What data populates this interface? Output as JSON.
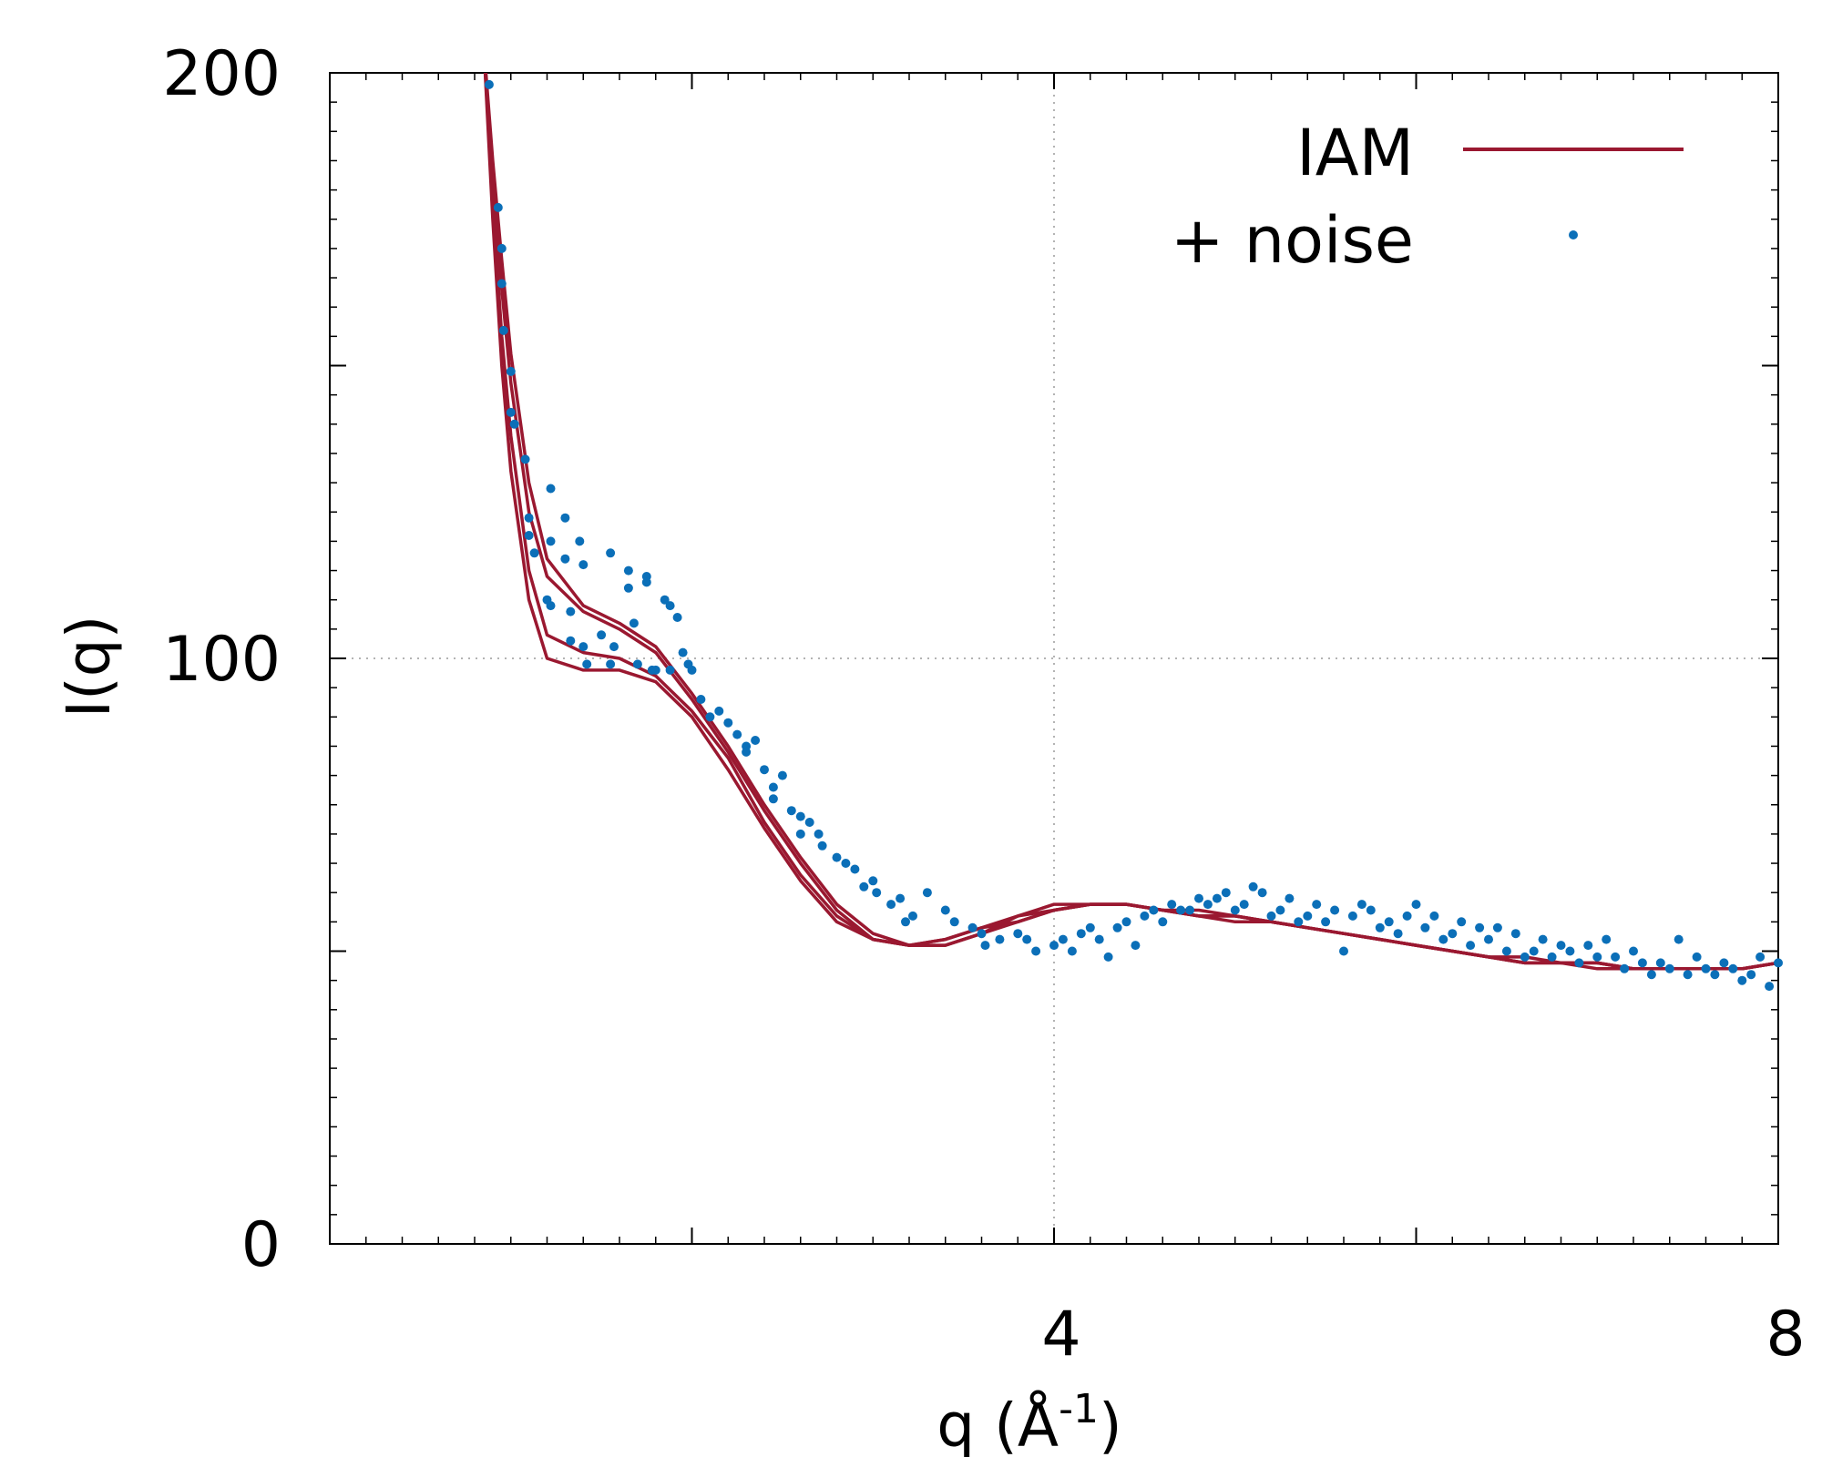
{
  "chart_data": {
    "type": "line",
    "title": "",
    "xlabel": "q (Å",
    "xlabel_sup": "-1",
    "xlabel_end": ")",
    "ylabel": "I(q)",
    "xlim": [
      0,
      8
    ],
    "ylim": [
      0,
      200
    ],
    "x_ticks": [
      4,
      8
    ],
    "x_tick_labels": [
      "4",
      "8"
    ],
    "x_ticks_unlabeled": [
      2,
      6
    ],
    "y_ticks": [
      0,
      100,
      200
    ],
    "y_tick_labels": [
      "0",
      "100",
      "200"
    ],
    "y_ticks_unlabeled": [
      50,
      150
    ],
    "grid": {
      "x": [
        4
      ],
      "y": [
        100
      ],
      "style": "dotted"
    },
    "legend": {
      "position": "top-right",
      "entries": [
        {
          "label": "IAM",
          "style": "line",
          "color": "#9a1830"
        },
        {
          "label": "+ noise",
          "style": "point",
          "color": "#0b6fb8"
        }
      ]
    },
    "colors": {
      "curve": "#9a1830",
      "points": "#0b6fb8"
    },
    "series": [
      {
        "x": [
          0.85,
          0.9,
          0.95,
          1.0,
          1.1,
          1.2,
          1.4,
          1.6,
          1.8,
          2.0,
          2.2,
          2.4,
          2.6,
          2.8,
          3.0,
          3.2,
          3.4,
          3.6,
          3.8,
          4.0,
          4.2,
          4.4,
          4.6,
          4.8,
          5.0,
          5.2,
          5.4,
          5.6,
          5.8,
          6.0,
          6.2,
          6.4,
          6.6,
          6.8,
          7.0,
          7.2,
          7.4,
          7.6,
          7.8,
          8.0
        ],
        "y": [
          205,
          185,
          168,
          152,
          130,
          117,
          109,
          106,
          102,
          94,
          85,
          75,
          66,
          58,
          53,
          51,
          51,
          53,
          55,
          57,
          58,
          58,
          57,
          56,
          56,
          55,
          54,
          53,
          52,
          51,
          50,
          49,
          48,
          48,
          48,
          47,
          47,
          47,
          47,
          48
        ]
      },
      {
        "x": [
          0.85,
          0.9,
          0.95,
          1.0,
          1.1,
          1.2,
          1.4,
          1.6,
          1.8,
          2.0,
          2.2,
          2.4,
          2.6,
          2.8,
          3.0,
          3.2,
          3.4,
          3.6,
          3.8,
          4.0,
          4.2,
          4.4,
          4.6,
          4.8,
          5.0,
          5.2,
          5.4,
          5.6,
          5.8,
          6.0,
          6.2,
          6.4,
          6.6,
          6.8,
          7.0,
          7.2,
          7.4,
          7.6,
          7.8,
          8.0
        ],
        "y": [
          205,
          182,
          163,
          147,
          125,
          114,
          108,
          105,
          101,
          93,
          84,
          74,
          65,
          57,
          52,
          51,
          52,
          54,
          56,
          58,
          58,
          58,
          57,
          56,
          55,
          55,
          54,
          53,
          52,
          51,
          50,
          49,
          48,
          48,
          47,
          47,
          47,
          47,
          47,
          48
        ]
      },
      {
        "x": [
          0.85,
          0.9,
          0.95,
          1.0,
          1.1,
          1.2,
          1.4,
          1.6,
          1.8,
          2.0,
          2.2,
          2.4,
          2.6,
          2.8,
          3.0,
          3.2,
          3.4,
          3.6,
          3.8,
          4.0,
          4.2,
          4.4,
          4.6,
          4.8,
          5.0,
          5.2,
          5.4,
          5.6,
          5.8,
          6.0,
          6.2,
          6.4,
          6.6,
          6.8,
          7.0,
          7.2,
          7.4,
          7.6,
          7.8,
          8.0
        ],
        "y": [
          205,
          178,
          155,
          138,
          115,
          104,
          101,
          100,
          97,
          91,
          83,
          72,
          63,
          56,
          52,
          51,
          52,
          54,
          55,
          57,
          58,
          58,
          57,
          56,
          56,
          55,
          54,
          53,
          52,
          51,
          50,
          49,
          48,
          48,
          48,
          47,
          47,
          47,
          47,
          48
        ]
      },
      {
        "x": [
          0.85,
          0.9,
          0.95,
          1.0,
          1.1,
          1.2,
          1.4,
          1.6,
          1.8,
          2.0,
          2.2,
          2.4,
          2.6,
          2.8,
          3.0,
          3.2,
          3.4,
          3.6,
          3.8,
          4.0,
          4.2,
          4.4,
          4.6,
          4.8,
          5.0,
          5.2,
          5.4,
          5.6,
          5.8,
          6.0,
          6.2,
          6.4,
          6.6,
          6.8,
          7.0,
          7.2,
          7.4,
          7.6,
          7.8,
          8.0
        ],
        "y": [
          205,
          175,
          150,
          132,
          110,
          100,
          98,
          98,
          96,
          90,
          81,
          71,
          62,
          55,
          52,
          51,
          51,
          53,
          56,
          57,
          58,
          58,
          57,
          57,
          56,
          55,
          54,
          53,
          52,
          51,
          50,
          49,
          49,
          48,
          48,
          47,
          47,
          47,
          47,
          48
        ]
      }
    ],
    "noise_points": [
      [
        0.88,
        198
      ],
      [
        0.93,
        177
      ],
      [
        0.95,
        170
      ],
      [
        0.95,
        164
      ],
      [
        0.96,
        156
      ],
      [
        1.0,
        149
      ],
      [
        1.0,
        142
      ],
      [
        1.02,
        140
      ],
      [
        1.08,
        134
      ],
      [
        1.1,
        124
      ],
      [
        1.1,
        121
      ],
      [
        1.13,
        118
      ],
      [
        1.22,
        129
      ],
      [
        1.22,
        120
      ],
      [
        1.2,
        110
      ],
      [
        1.22,
        109
      ],
      [
        1.3,
        124
      ],
      [
        1.3,
        117
      ],
      [
        1.33,
        108
      ],
      [
        1.33,
        103
      ],
      [
        1.38,
        120
      ],
      [
        1.4,
        116
      ],
      [
        1.4,
        102
      ],
      [
        1.42,
        99
      ],
      [
        1.5,
        104
      ],
      [
        1.55,
        118
      ],
      [
        1.55,
        99
      ],
      [
        1.57,
        102
      ],
      [
        1.65,
        115
      ],
      [
        1.65,
        112
      ],
      [
        1.68,
        106
      ],
      [
        1.7,
        99
      ],
      [
        1.75,
        114
      ],
      [
        1.75,
        113
      ],
      [
        1.78,
        98
      ],
      [
        1.8,
        98
      ],
      [
        1.85,
        110
      ],
      [
        1.88,
        109
      ],
      [
        1.88,
        98
      ],
      [
        1.92,
        107
      ],
      [
        1.95,
        101
      ],
      [
        1.98,
        99
      ],
      [
        2.0,
        98
      ],
      [
        2.05,
        93
      ],
      [
        2.1,
        90
      ],
      [
        2.15,
        91
      ],
      [
        2.2,
        89
      ],
      [
        2.25,
        87
      ],
      [
        2.3,
        85
      ],
      [
        2.3,
        84
      ],
      [
        2.35,
        86
      ],
      [
        2.4,
        81
      ],
      [
        2.45,
        78
      ],
      [
        2.45,
        76
      ],
      [
        2.5,
        80
      ],
      [
        2.55,
        74
      ],
      [
        2.6,
        73
      ],
      [
        2.6,
        70
      ],
      [
        2.65,
        72
      ],
      [
        2.7,
        70
      ],
      [
        2.72,
        68
      ],
      [
        2.8,
        66
      ],
      [
        2.85,
        65
      ],
      [
        2.9,
        64
      ],
      [
        2.95,
        61
      ],
      [
        3.0,
        62
      ],
      [
        3.02,
        60
      ],
      [
        3.1,
        58
      ],
      [
        3.15,
        59
      ],
      [
        3.18,
        55
      ],
      [
        3.22,
        56
      ],
      [
        3.3,
        60
      ],
      [
        3.4,
        57
      ],
      [
        3.45,
        55
      ],
      [
        3.55,
        54
      ],
      [
        3.6,
        53
      ],
      [
        3.62,
        51
      ],
      [
        3.7,
        52
      ],
      [
        3.8,
        53
      ],
      [
        3.85,
        52
      ],
      [
        3.9,
        50
      ],
      [
        4.0,
        51
      ],
      [
        4.05,
        52
      ],
      [
        4.1,
        50
      ],
      [
        4.15,
        53
      ],
      [
        4.2,
        54
      ],
      [
        4.25,
        52
      ],
      [
        4.3,
        49
      ],
      [
        4.35,
        54
      ],
      [
        4.4,
        55
      ],
      [
        4.45,
        51
      ],
      [
        4.5,
        56
      ],
      [
        4.55,
        57
      ],
      [
        4.6,
        55
      ],
      [
        4.65,
        58
      ],
      [
        4.7,
        57
      ],
      [
        4.75,
        57
      ],
      [
        4.8,
        59
      ],
      [
        4.85,
        58
      ],
      [
        4.9,
        59
      ],
      [
        4.95,
        60
      ],
      [
        5.0,
        57
      ],
      [
        5.05,
        58
      ],
      [
        5.1,
        61
      ],
      [
        5.15,
        60
      ],
      [
        5.2,
        56
      ],
      [
        5.25,
        57
      ],
      [
        5.3,
        59
      ],
      [
        5.35,
        55
      ],
      [
        5.4,
        56
      ],
      [
        5.45,
        58
      ],
      [
        5.5,
        55
      ],
      [
        5.55,
        57
      ],
      [
        5.6,
        50
      ],
      [
        5.65,
        56
      ],
      [
        5.7,
        58
      ],
      [
        5.75,
        57
      ],
      [
        5.8,
        54
      ],
      [
        5.85,
        55
      ],
      [
        5.9,
        53
      ],
      [
        5.95,
        56
      ],
      [
        6.0,
        58
      ],
      [
        6.05,
        54
      ],
      [
        6.1,
        56
      ],
      [
        6.15,
        52
      ],
      [
        6.2,
        53
      ],
      [
        6.25,
        55
      ],
      [
        6.3,
        51
      ],
      [
        6.35,
        54
      ],
      [
        6.4,
        52
      ],
      [
        6.45,
        54
      ],
      [
        6.5,
        50
      ],
      [
        6.55,
        53
      ],
      [
        6.6,
        49
      ],
      [
        6.65,
        50
      ],
      [
        6.7,
        52
      ],
      [
        6.75,
        49
      ],
      [
        6.8,
        51
      ],
      [
        6.85,
        50
      ],
      [
        6.9,
        48
      ],
      [
        6.95,
        51
      ],
      [
        7.0,
        49
      ],
      [
        7.05,
        52
      ],
      [
        7.1,
        49
      ],
      [
        7.15,
        47
      ],
      [
        7.2,
        50
      ],
      [
        7.25,
        48
      ],
      [
        7.3,
        46
      ],
      [
        7.35,
        48
      ],
      [
        7.4,
        47
      ],
      [
        7.45,
        52
      ],
      [
        7.5,
        46
      ],
      [
        7.55,
        49
      ],
      [
        7.6,
        47
      ],
      [
        7.65,
        46
      ],
      [
        7.7,
        48
      ],
      [
        7.75,
        47
      ],
      [
        7.8,
        45
      ],
      [
        7.85,
        46
      ],
      [
        7.9,
        49
      ],
      [
        7.95,
        44
      ],
      [
        8.0,
        48
      ]
    ]
  }
}
